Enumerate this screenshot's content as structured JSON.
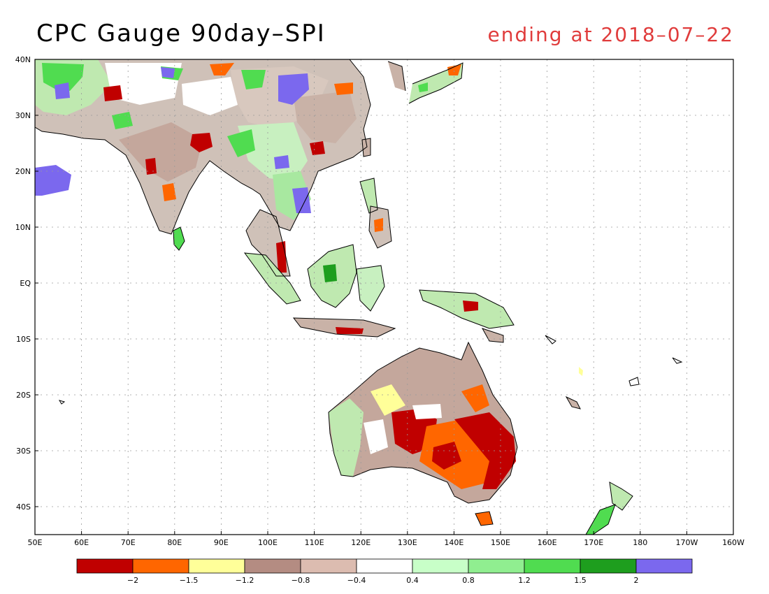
{
  "title": "CPC Gauge 90day–SPI",
  "date_label": "ending at 2018–07–22",
  "lon_ticks": [
    "50E",
    "60E",
    "70E",
    "80E",
    "90E",
    "100E",
    "110E",
    "120E",
    "130E",
    "140E",
    "150E",
    "160E",
    "170E",
    "180",
    "170W",
    "160W"
  ],
  "lat_ticks": [
    "40N",
    "30N",
    "20N",
    "10N",
    "EQ",
    "10S",
    "20S",
    "30S",
    "40S"
  ],
  "legend": {
    "colors": [
      "#c00000",
      "#ff6600",
      "#ffff99",
      "#b48c82",
      "#dcbcb0",
      "#ffffff",
      "#c8ffc8",
      "#90ee90",
      "#50dc50",
      "#1e9e1e",
      "#7b68ee"
    ],
    "labels": [
      "−2",
      "−1.5",
      "−1.2",
      "−0.8",
      "−0.4",
      "0.4",
      "0.8",
      "1.2",
      "1.5",
      "2"
    ]
  }
}
